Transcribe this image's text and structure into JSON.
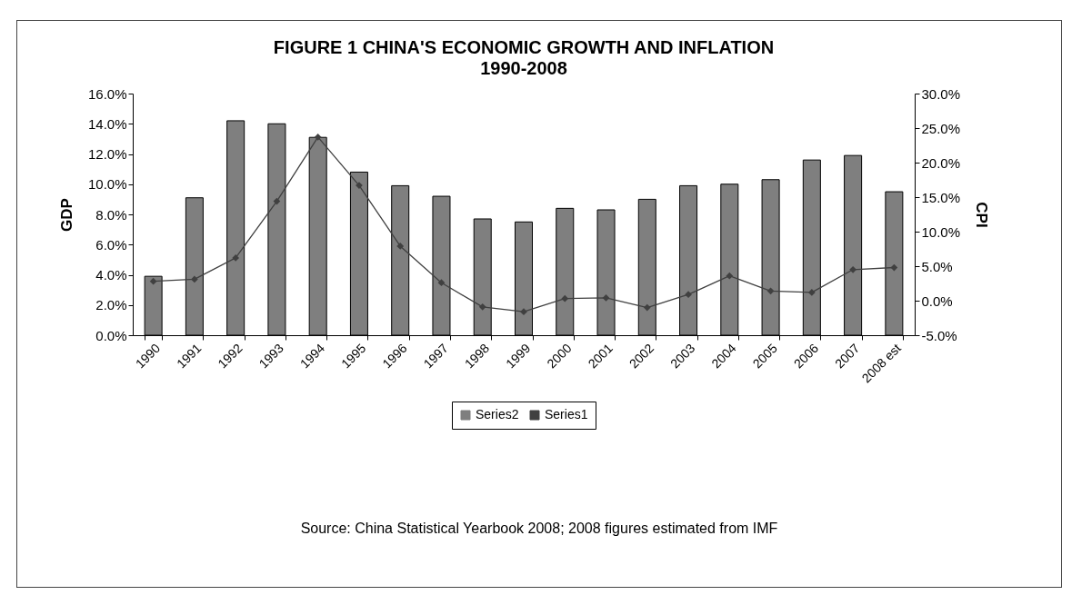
{
  "chart_data": {
    "type": "bar",
    "title": "FIGURE 1    CHINA'S ECONOMIC GROWTH AND INFLATION",
    "subtitle": "1990-2008",
    "ylabel": "GDP",
    "y2label": "CPI",
    "categories": [
      "1990",
      "1991",
      "1992",
      "1993",
      "1994",
      "1995",
      "1996",
      "1997",
      "1998",
      "1999",
      "2000",
      "2001",
      "2002",
      "2003",
      "2004",
      "2005",
      "2006",
      "2007",
      "2008 est"
    ],
    "series": [
      {
        "name": "Series2",
        "color": "#7f7f7f",
        "values": [
          3.9,
          9.1,
          14.2,
          14.0,
          13.1,
          10.8,
          9.9,
          9.2,
          7.7,
          7.5,
          8.4,
          8.3,
          9.0,
          9.9,
          10.0,
          10.3,
          11.6,
          11.9,
          9.5
        ]
      },
      {
        "name": "Series1",
        "type": "line",
        "axis": "y2",
        "color": "#404040",
        "values": [
          2.8,
          3.1,
          6.2,
          14.4,
          23.7,
          16.7,
          7.9,
          2.6,
          -0.9,
          -1.6,
          0.3,
          0.4,
          -1.0,
          0.9,
          3.6,
          1.4,
          1.2,
          4.5,
          4.8
        ]
      }
    ],
    "ylim": [
      0,
      16
    ],
    "yticks": [
      {
        "value": 0,
        "label": "0.0%"
      },
      {
        "value": 2,
        "label": "2.0%"
      },
      {
        "value": 4,
        "label": "4.0%"
      },
      {
        "value": 6,
        "label": "6.0%"
      },
      {
        "value": 8,
        "label": "8.0%"
      },
      {
        "value": 10,
        "label": "10.0%"
      },
      {
        "value": 12,
        "label": "12.0%"
      },
      {
        "value": 14,
        "label": "14.0%"
      },
      {
        "value": 16,
        "label": "16.0%"
      }
    ],
    "y2lim": [
      -5,
      30
    ],
    "y2ticks": [
      {
        "value": -5,
        "label": "-5.0%"
      },
      {
        "value": 0,
        "label": "0.0%"
      },
      {
        "value": 5,
        "label": "5.0%"
      },
      {
        "value": 10,
        "label": "10.0%"
      },
      {
        "value": 15,
        "label": "15.0%"
      },
      {
        "value": 20,
        "label": "20.0%"
      },
      {
        "value": 25,
        "label": "25.0%"
      },
      {
        "value": 30,
        "label": "30.0%"
      }
    ],
    "grid": false,
    "legend": "bottom",
    "marker": "diamond",
    "line_style": "solid",
    "annotations": [
      "Source: China Statistical Yearbook 2008; 2008 figures estimated from IMF"
    ]
  }
}
